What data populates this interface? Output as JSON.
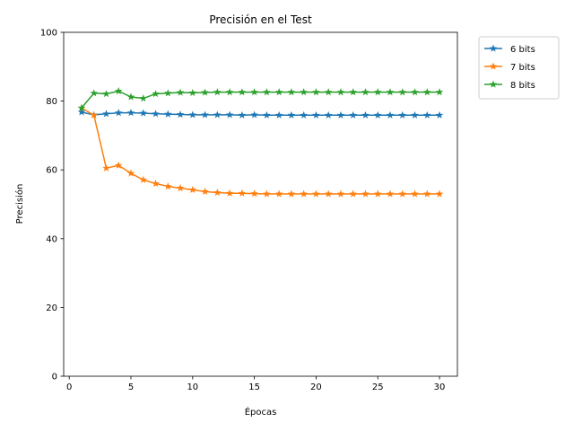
{
  "chart_data": {
    "type": "line",
    "title": "Precisión en el Test",
    "xlabel": "Épocas",
    "ylabel": "Precisión",
    "xlim": [
      -0.45,
      31.45
    ],
    "ylim": [
      0,
      100
    ],
    "x_ticks": [
      0,
      5,
      10,
      15,
      20,
      25,
      30
    ],
    "y_ticks": [
      0,
      20,
      40,
      60,
      80,
      100
    ],
    "grid": false,
    "legend_position": "outside-top-right",
    "marker": "star",
    "x": [
      1,
      2,
      3,
      4,
      5,
      6,
      7,
      8,
      9,
      10,
      11,
      12,
      13,
      14,
      15,
      16,
      17,
      18,
      19,
      20,
      21,
      22,
      23,
      24,
      25,
      26,
      27,
      28,
      29,
      30
    ],
    "series": [
      {
        "name": "6 bits",
        "color": "#1f77b4",
        "values": [
          76.8,
          76.0,
          76.3,
          76.6,
          76.6,
          76.5,
          76.3,
          76.2,
          76.1,
          76.0,
          76.0,
          76.0,
          76.0,
          75.9,
          76.0,
          75.9,
          75.9,
          75.9,
          75.9,
          75.9,
          75.9,
          75.9,
          75.9,
          75.9,
          75.9,
          75.9,
          75.9,
          75.9,
          75.9,
          75.9
        ]
      },
      {
        "name": "7 bits",
        "color": "#ff7f0e",
        "values": [
          78.0,
          75.9,
          60.5,
          61.3,
          59.0,
          57.1,
          56.0,
          55.2,
          54.7,
          54.2,
          53.7,
          53.4,
          53.2,
          53.2,
          53.1,
          53.0,
          53.0,
          53.0,
          53.0,
          53.0,
          53.0,
          53.0,
          53.0,
          53.0,
          53.0,
          53.0,
          53.0,
          53.0,
          53.0,
          53.0
        ]
      },
      {
        "name": "8 bits",
        "color": "#2ca02c",
        "values": [
          78.0,
          82.3,
          82.1,
          82.9,
          81.2,
          80.8,
          82.1,
          82.3,
          82.5,
          82.4,
          82.5,
          82.6,
          82.6,
          82.6,
          82.6,
          82.6,
          82.6,
          82.6,
          82.6,
          82.6,
          82.6,
          82.6,
          82.6,
          82.6,
          82.6,
          82.6,
          82.6,
          82.6,
          82.6,
          82.6
        ]
      }
    ]
  }
}
